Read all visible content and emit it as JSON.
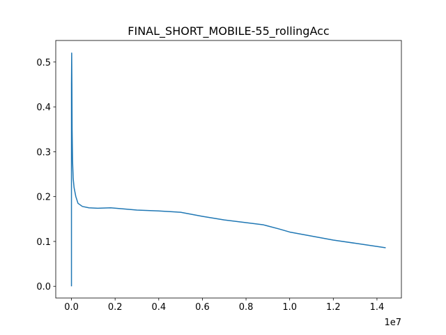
{
  "chart_data": {
    "type": "line",
    "title": "FINAL_SHORT_MOBILE-55_rollingAcc",
    "x": [
      0,
      0,
      10000,
      20000,
      30000,
      50000,
      80000,
      120000,
      200000,
      300000,
      500000,
      800000,
      1200000,
      1800000,
      2500000,
      3000000,
      4000000,
      5000000,
      6000000,
      7000000,
      8000000,
      8800000,
      9500000,
      10000000,
      11000000,
      12000000,
      13000000,
      14400000
    ],
    "values": [
      0,
      0.45,
      0.52,
      0.45,
      0.35,
      0.28,
      0.24,
      0.22,
      0.2,
      0.185,
      0.178,
      0.175,
      0.174,
      0.175,
      0.172,
      0.17,
      0.168,
      0.165,
      0.156,
      0.148,
      0.142,
      0.137,
      0.128,
      0.121,
      0.112,
      0.103,
      0.096,
      0.086
    ],
    "color": "#1f77b4",
    "xlim": [
      -720000,
      15120000
    ],
    "xticks": [
      {
        "value": 0,
        "label": "0.0"
      },
      {
        "value": 2000000,
        "label": "0.2"
      },
      {
        "value": 4000000,
        "label": "0.4"
      },
      {
        "value": 6000000,
        "label": "0.6"
      },
      {
        "value": 8000000,
        "label": "0.8"
      },
      {
        "value": 10000000,
        "label": "1.0"
      },
      {
        "value": 12000000,
        "label": "1.2"
      },
      {
        "value": 14000000,
        "label": "1.4"
      }
    ],
    "x_offset_label": "1e7",
    "ylim": [
      -0.0261,
      0.548
    ],
    "yticks": [
      {
        "value": 0,
        "label": "0.0"
      },
      0.1,
      0.2,
      0.3,
      0.4,
      0.5
    ],
    "grid": false
  }
}
